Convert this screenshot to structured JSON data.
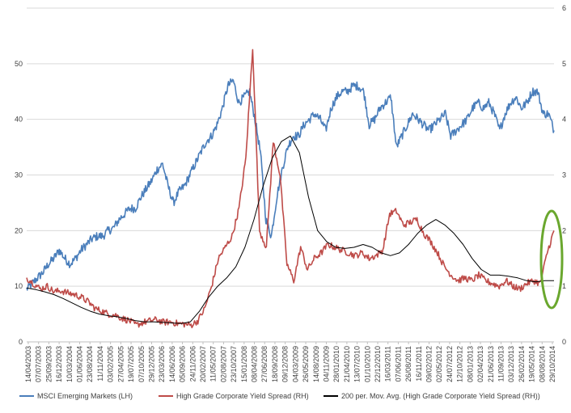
{
  "chart_data": {
    "type": "line",
    "y_left": {
      "ticks": [
        "0",
        "10",
        "20",
        "30",
        "40",
        "50"
      ],
      "ylim": [
        0,
        60
      ]
    },
    "y_right": {
      "ticks": [
        "0",
        "1",
        "2",
        "3",
        "4",
        "5",
        "6"
      ],
      "ylim": [
        0,
        6
      ]
    },
    "grid": "horizontal",
    "x_tick_labels": [
      "14/04/2003",
      "07/07/2003",
      "25/09/2003",
      "16/12/2003",
      "10/03/2004",
      "01/06/2004",
      "23/08/2004",
      "11/11/2004",
      "03/02/2005",
      "27/04/2005",
      "19/07/2005",
      "07/10/2005",
      "29/12/2005",
      "23/03/2006",
      "14/06/2006",
      "05/09/2006",
      "24/11/2006",
      "20/02/2007",
      "11/05/2007",
      "02/08/2007",
      "23/10/2007",
      "15/01/2008",
      "08/04/2008",
      "27/06/2008",
      "18/09/2008",
      "09/12/2008",
      "04/03/2009",
      "26/05/2009",
      "14/08/2009",
      "04/11/2009",
      "28/01/2010",
      "21/04/2010",
      "13/07/2010",
      "01/10/2010",
      "22/12/2010",
      "16/03/2011",
      "07/06/2011",
      "26/08/2011",
      "16/11/2011",
      "09/02/2012",
      "02/05/2012",
      "24/07/2012",
      "12/10/2012",
      "08/01/2013",
      "02/04/2013",
      "21/06/2013",
      "11/09/2013",
      "03/12/2013",
      "26/02/2014",
      "19/05/2014",
      "08/08/2014",
      "29/10/2014"
    ],
    "legend_position": "bottom",
    "series": [
      {
        "name": "MSCI Emerging Markets (LH)",
        "axis": "left",
        "color": "#4a7ebb",
        "values": [
          9.5,
          10.5,
          11.5,
          12.5,
          14,
          15,
          16.5,
          15,
          14,
          15,
          16.5,
          17.5,
          18.5,
          19,
          19,
          20,
          20.5,
          22,
          23,
          24,
          24,
          26,
          27.5,
          29,
          31,
          32,
          28,
          25,
          27,
          28,
          30,
          32,
          34,
          36,
          37,
          39,
          42,
          46,
          47,
          43,
          44,
          45,
          40,
          34,
          22,
          19,
          26,
          31,
          35,
          37,
          37,
          39,
          40,
          41,
          40,
          38,
          42,
          44,
          45,
          45,
          46,
          46,
          45,
          39,
          40,
          42,
          43,
          44,
          35,
          37,
          39,
          41,
          40,
          39,
          38,
          39,
          40,
          41,
          37,
          38,
          39,
          40,
          42,
          43,
          42,
          43,
          41,
          38,
          41,
          43,
          44,
          42,
          43,
          45,
          45,
          41,
          41,
          38
        ]
      },
      {
        "name": "High Grade Corporate Yield Spread (RH)",
        "axis": "right",
        "color": "#be4b48",
        "values": [
          1.15,
          1.05,
          0.95,
          1,
          0.9,
          0.92,
          0.88,
          0.85,
          0.8,
          0.72,
          0.6,
          0.55,
          0.5,
          0.48,
          0.42,
          0.38,
          0.3,
          0.35,
          0.38,
          0.4,
          0.35,
          0.36,
          0.33,
          0.32,
          0.3,
          0.38,
          0.6,
          1,
          1.5,
          1.7,
          1.9,
          2.4,
          3.3,
          5.3,
          2,
          1.7,
          3.6,
          3,
          1.4,
          1.1,
          1.7,
          1.3,
          1.5,
          1.6,
          1.75,
          1.7,
          1.65,
          1.6,
          1.55,
          1.6,
          1.5,
          1.55,
          1.65,
          2.3,
          2.35,
          2.1,
          2.15,
          2.2,
          1.95,
          1.8,
          1.6,
          1.35,
          1.2,
          1.1,
          1.15,
          1.1,
          1.2,
          1.1,
          1.05,
          1.0,
          1.1,
          1.0,
          0.95,
          1.05,
          1.1,
          1.05,
          1.6,
          2.0
        ]
      },
      {
        "name": "200 per. Mov. Avg. (High Grade Corporate Yield Spread (RH))",
        "axis": "right",
        "color": "#000000",
        "values": [
          0.97,
          0.94,
          0.9,
          0.85,
          0.78,
          0.7,
          0.62,
          0.55,
          0.5,
          0.47,
          0.45,
          0.42,
          0.38,
          0.36,
          0.36,
          0.35,
          0.34,
          0.33,
          0.36,
          0.55,
          0.8,
          1.0,
          1.15,
          1.35,
          1.7,
          2.2,
          2.8,
          3.3,
          3.6,
          3.7,
          3.4,
          2.6,
          2.0,
          1.8,
          1.7,
          1.68,
          1.7,
          1.75,
          1.7,
          1.6,
          1.55,
          1.6,
          1.75,
          1.95,
          2.1,
          2.2,
          2.1,
          1.95,
          1.75,
          1.5,
          1.3,
          1.2,
          1.2,
          1.18,
          1.15,
          1.1,
          1.08,
          1.1,
          1.1
        ]
      }
    ],
    "annotation": {
      "shape": "ellipse",
      "color": "#6aa72e"
    }
  }
}
